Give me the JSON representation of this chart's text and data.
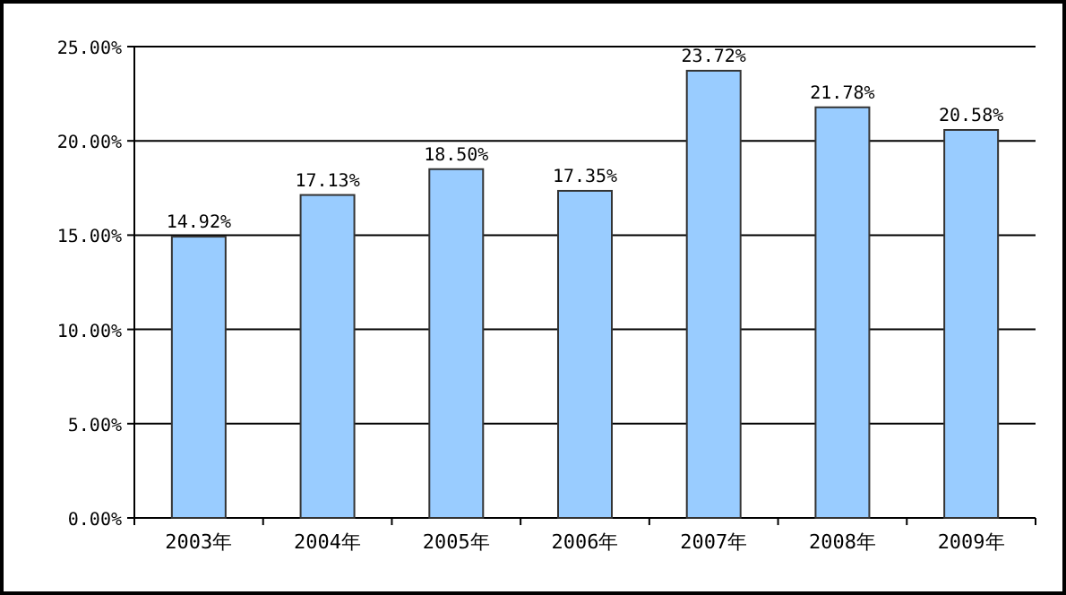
{
  "chart_data": {
    "type": "bar",
    "categories": [
      "2003年",
      "2004年",
      "2005年",
      "2006年",
      "2007年",
      "2008年",
      "2009年"
    ],
    "values": [
      14.92,
      17.13,
      18.5,
      17.35,
      23.72,
      21.78,
      20.58
    ],
    "value_labels": [
      "14.92%",
      "17.13%",
      "18.50%",
      "17.35%",
      "23.72%",
      "21.78%",
      "20.58%"
    ],
    "color": "#99ccff",
    "ylim": [
      0,
      25
    ],
    "yticks": [
      {
        "value": 0,
        "label": "0.00%"
      },
      {
        "value": 5,
        "label": "5.00%"
      },
      {
        "value": 10,
        "label": "10.00%"
      },
      {
        "value": 15,
        "label": "15.00%"
      },
      {
        "value": 20,
        "label": "20.00%"
      },
      {
        "value": 25,
        "label": "25.00%"
      }
    ],
    "grid": "y"
  }
}
